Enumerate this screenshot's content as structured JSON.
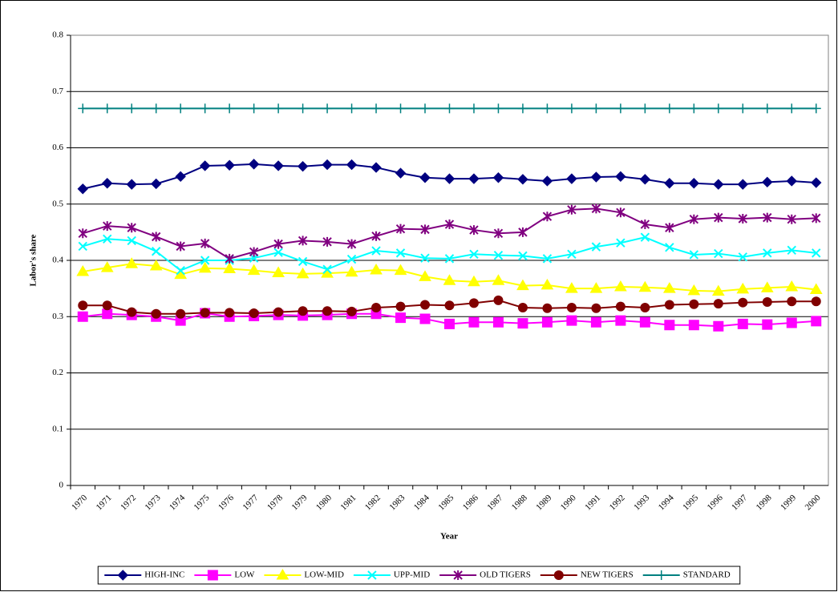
{
  "chart_data": {
    "type": "line",
    "x_label": "Year",
    "y_label": "Labor's share",
    "categories": [
      "1970",
      "1971",
      "1972",
      "1973",
      "1974",
      "1975",
      "1976",
      "1977",
      "1978",
      "1979",
      "1980",
      "1981",
      "1982",
      "1983",
      "1984",
      "1985",
      "1986",
      "1987",
      "1988",
      "1989",
      "1990",
      "1991",
      "1992",
      "1993",
      "1994",
      "1995",
      "1996",
      "1997",
      "1998",
      "1999",
      "2000"
    ],
    "ylim": [
      0,
      0.8
    ],
    "yticks": [
      0,
      0.1,
      0.2,
      0.3,
      0.4,
      0.5,
      0.6,
      0.7,
      0.8
    ],
    "grid": true,
    "legend": "bottom",
    "series": [
      {
        "name": "HIGH-INC",
        "color": "#000080",
        "marker": "diamond",
        "values": [
          0.527,
          0.537,
          0.535,
          0.536,
          0.549,
          0.568,
          0.569,
          0.571,
          0.568,
          0.567,
          0.57,
          0.57,
          0.565,
          0.555,
          0.547,
          0.545,
          0.545,
          0.547,
          0.544,
          0.541,
          0.545,
          0.548,
          0.549,
          0.544,
          0.537,
          0.537,
          0.535,
          0.535,
          0.539,
          0.541,
          0.538
        ]
      },
      {
        "name": "LOW",
        "color": "#ff00ff",
        "marker": "square",
        "values": [
          0.3,
          0.305,
          0.303,
          0.3,
          0.293,
          0.306,
          0.3,
          0.301,
          0.303,
          0.302,
          0.303,
          0.305,
          0.305,
          0.298,
          0.296,
          0.287,
          0.29,
          0.29,
          0.288,
          0.29,
          0.293,
          0.29,
          0.293,
          0.29,
          0.285,
          0.285,
          0.283,
          0.287,
          0.286,
          0.289,
          0.292
        ]
      },
      {
        "name": "LOW-MID",
        "color": "#ffff00",
        "marker": "triangle",
        "values": [
          0.38,
          0.387,
          0.394,
          0.39,
          0.375,
          0.386,
          0.385,
          0.382,
          0.378,
          0.376,
          0.377,
          0.379,
          0.383,
          0.382,
          0.371,
          0.364,
          0.362,
          0.364,
          0.355,
          0.356,
          0.35,
          0.35,
          0.353,
          0.352,
          0.35,
          0.346,
          0.345,
          0.349,
          0.351,
          0.353,
          0.348
        ]
      },
      {
        "name": "UPP-MID",
        "color": "#00ffff",
        "marker": "x",
        "values": [
          0.425,
          0.438,
          0.435,
          0.416,
          0.382,
          0.4,
          0.4,
          0.404,
          0.414,
          0.398,
          0.384,
          0.402,
          0.417,
          0.413,
          0.404,
          0.403,
          0.411,
          0.409,
          0.408,
          0.403,
          0.411,
          0.424,
          0.431,
          0.441,
          0.423,
          0.41,
          0.412,
          0.406,
          0.413,
          0.418,
          0.413
        ]
      },
      {
        "name": "OLD TIGERS",
        "color": "#800080",
        "marker": "asterisk",
        "values": [
          0.448,
          0.461,
          0.458,
          0.442,
          0.425,
          0.43,
          0.403,
          0.415,
          0.429,
          0.435,
          0.433,
          0.429,
          0.443,
          0.456,
          0.455,
          0.464,
          0.454,
          0.448,
          0.45,
          0.478,
          0.49,
          0.492,
          0.485,
          0.464,
          0.458,
          0.473,
          0.476,
          0.474,
          0.476,
          0.473,
          0.475
        ]
      },
      {
        "name": "NEW TIGERS",
        "color": "#800000",
        "marker": "circle",
        "values": [
          0.32,
          0.32,
          0.308,
          0.305,
          0.305,
          0.307,
          0.307,
          0.306,
          0.308,
          0.31,
          0.31,
          0.309,
          0.316,
          0.318,
          0.321,
          0.32,
          0.324,
          0.329,
          0.316,
          0.315,
          0.316,
          0.315,
          0.318,
          0.316,
          0.321,
          0.322,
          0.323,
          0.325,
          0.326,
          0.327,
          0.327
        ]
      },
      {
        "name": "STANDARD",
        "color": "#008080",
        "marker": "plus",
        "values": [
          0.67,
          0.67,
          0.67,
          0.67,
          0.67,
          0.67,
          0.67,
          0.67,
          0.67,
          0.67,
          0.67,
          0.67,
          0.67,
          0.67,
          0.67,
          0.67,
          0.67,
          0.67,
          0.67,
          0.67,
          0.67,
          0.67,
          0.67,
          0.67,
          0.67,
          0.67,
          0.67,
          0.67,
          0.67,
          0.67,
          0.67
        ]
      }
    ]
  }
}
